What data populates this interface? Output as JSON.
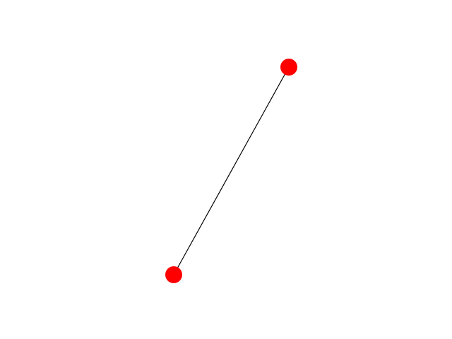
{
  "graph": {
    "node_count": 2,
    "edge_count": 1,
    "node_color": "#ff0000",
    "edge_color": "#000000",
    "background_color": "#ffffff",
    "nodes": [
      {
        "id": "node-a",
        "label": ""
      },
      {
        "id": "node-b",
        "label": ""
      }
    ],
    "edges": [
      {
        "source": "node-a",
        "target": "node-b"
      }
    ]
  }
}
